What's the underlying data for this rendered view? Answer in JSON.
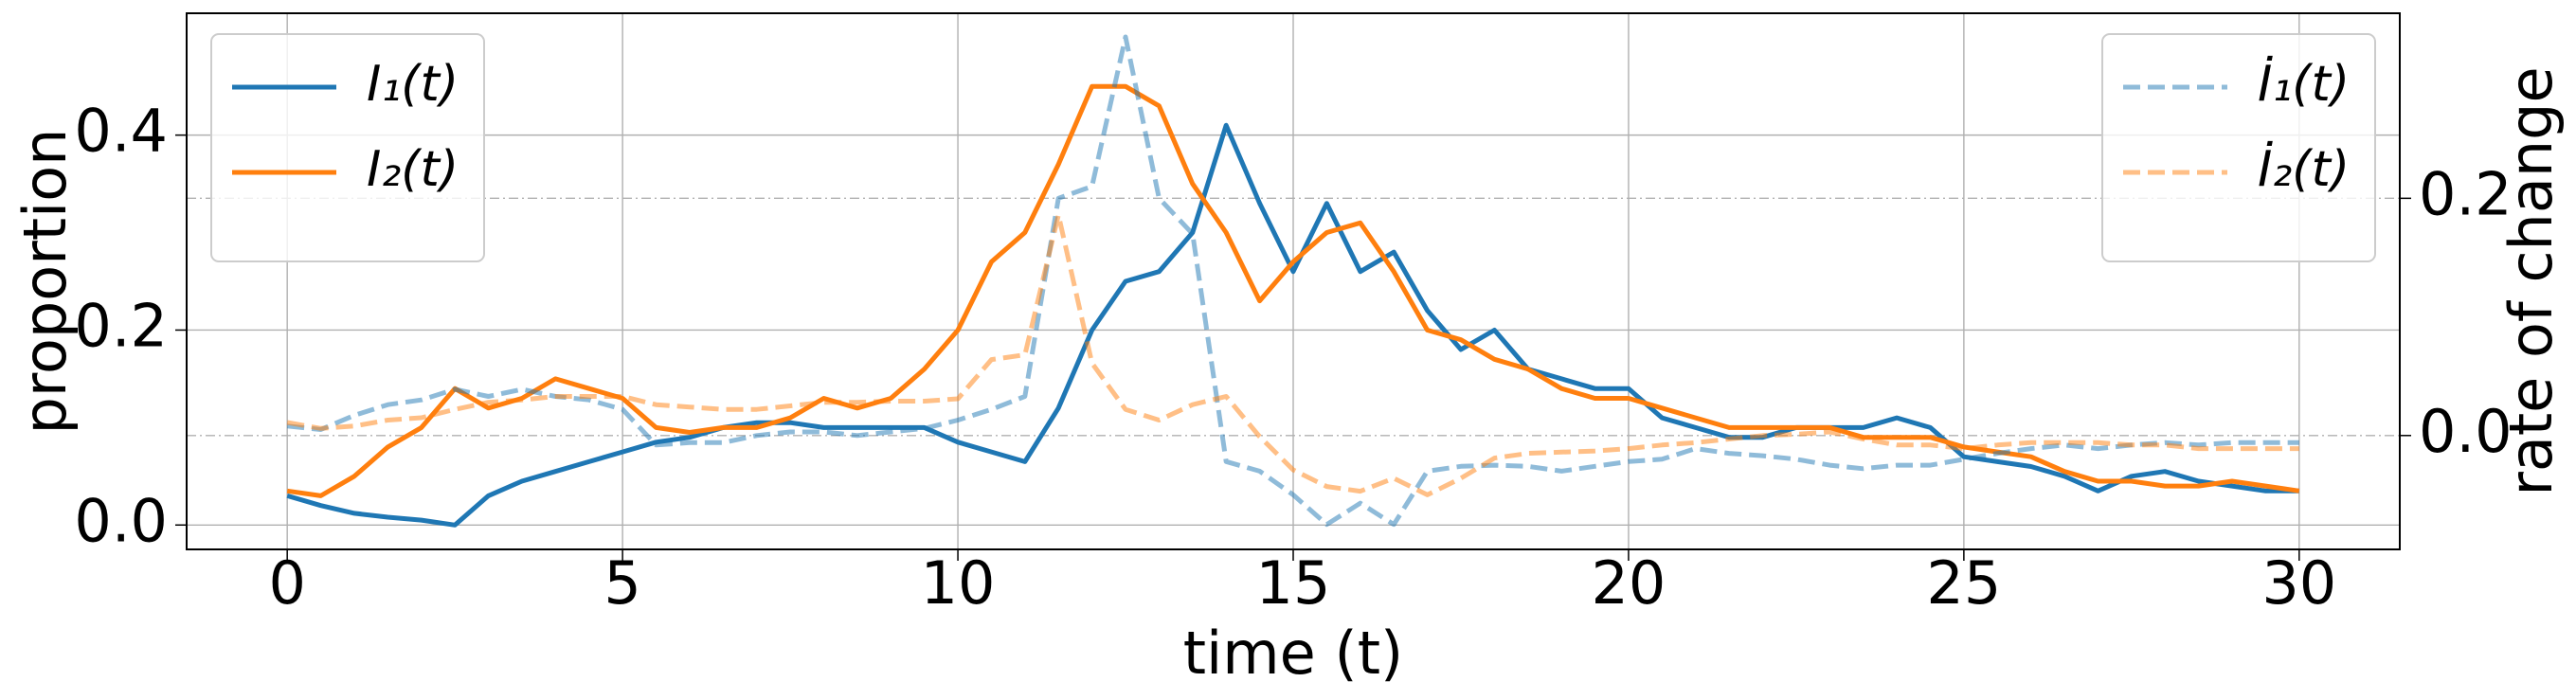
{
  "chart_data": {
    "type": "line",
    "xlabel": "time (t)",
    "ylabel": "proportion",
    "y2label": "rate of change",
    "x": [
      0,
      0.5,
      1,
      1.5,
      2,
      2.5,
      3,
      3.5,
      4,
      4.5,
      5,
      5.5,
      6,
      6.5,
      7,
      7.5,
      8,
      8.5,
      9,
      9.5,
      10,
      10.5,
      11,
      11.5,
      12,
      12.5,
      13,
      13.5,
      14,
      14.5,
      15,
      15.5,
      16,
      16.5,
      17,
      17.5,
      18,
      18.5,
      19,
      19.5,
      20,
      20.5,
      21,
      21.5,
      22,
      22.5,
      23,
      23.5,
      24,
      24.5,
      25,
      25.5,
      26,
      26.5,
      27,
      27.5,
      28,
      28.5,
      29,
      29.5,
      30
    ],
    "series": [
      {
        "name": "I₁(t)",
        "color": "#1f77b4",
        "linestyle": "solid",
        "alpha": 1,
        "values": [
          0.03,
          0.02,
          0.012,
          0.008,
          0.005,
          0.0,
          0.03,
          0.045,
          0.055,
          0.065,
          0.075,
          0.085,
          0.09,
          0.1,
          0.105,
          0.105,
          0.1,
          0.1,
          0.1,
          0.1,
          0.085,
          0.075,
          0.065,
          0.12,
          0.2,
          0.25,
          0.26,
          0.3,
          0.41,
          0.33,
          0.26,
          0.33,
          0.26,
          0.28,
          0.22,
          0.18,
          0.2,
          0.16,
          0.15,
          0.14,
          0.14,
          0.11,
          0.1,
          0.09,
          0.09,
          0.1,
          0.1,
          0.1,
          0.11,
          0.1,
          0.07,
          0.065,
          0.06,
          0.05,
          0.035,
          0.05,
          0.055,
          0.045,
          0.04,
          0.035,
          0.035
        ]
      },
      {
        "name": "I₂(t)",
        "color": "#ff7f0e",
        "linestyle": "solid",
        "alpha": 1,
        "values": [
          0.035,
          0.03,
          0.05,
          0.08,
          0.1,
          0.14,
          0.12,
          0.13,
          0.15,
          0.14,
          0.13,
          0.1,
          0.095,
          0.1,
          0.1,
          0.11,
          0.13,
          0.12,
          0.13,
          0.16,
          0.2,
          0.27,
          0.3,
          0.37,
          0.45,
          0.45,
          0.43,
          0.35,
          0.3,
          0.23,
          0.27,
          0.3,
          0.31,
          0.26,
          0.2,
          0.19,
          0.17,
          0.16,
          0.14,
          0.13,
          0.13,
          0.12,
          0.11,
          0.1,
          0.1,
          0.1,
          0.1,
          0.09,
          0.09,
          0.09,
          0.08,
          0.075,
          0.07,
          0.055,
          0.045,
          0.045,
          0.04,
          0.04,
          0.045,
          0.04,
          0.035
        ]
      },
      {
        "name": "İ₁(t)",
        "color": "#1f77b4",
        "linestyle": "dashed",
        "alpha": 0.5,
        "axis": "y2",
        "values": [
          0.008,
          0.005,
          0.017,
          0.026,
          0.03,
          0.039,
          0.033,
          0.039,
          0.033,
          0.03,
          0.022,
          -0.008,
          -0.006,
          -0.006,
          0,
          0.003,
          0.003,
          0,
          0.003,
          0.006,
          0.013,
          0.022,
          0.033,
          0.2,
          0.21,
          0.336,
          0.2,
          0.17,
          -0.022,
          -0.03,
          -0.05,
          -0.075,
          -0.057,
          -0.075,
          -0.03,
          -0.026,
          -0.025,
          -0.026,
          -0.03,
          -0.026,
          -0.022,
          -0.02,
          -0.011,
          -0.015,
          -0.017,
          -0.02,
          -0.025,
          -0.028,
          -0.025,
          -0.025,
          -0.02,
          -0.015,
          -0.011,
          -0.008,
          -0.011,
          -0.008,
          -0.006,
          -0.008,
          -0.006,
          -0.006,
          -0.006
        ]
      },
      {
        "name": "İ₂(t)",
        "color": "#ff7f0e",
        "linestyle": "dashed",
        "alpha": 0.5,
        "axis": "y2",
        "values": [
          0.011,
          0.006,
          0.008,
          0.013,
          0.015,
          0.022,
          0.028,
          0.03,
          0.033,
          0.033,
          0.033,
          0.026,
          0.024,
          0.022,
          0.022,
          0.025,
          0.028,
          0.028,
          0.029,
          0.029,
          0.031,
          0.064,
          0.068,
          0.186,
          0.061,
          0.022,
          0.013,
          0.026,
          0.033,
          -0.001,
          -0.029,
          -0.043,
          -0.047,
          -0.036,
          -0.05,
          -0.036,
          -0.019,
          -0.015,
          -0.014,
          -0.013,
          -0.011,
          -0.008,
          -0.006,
          -0.003,
          0,
          0.001,
          0.003,
          -0.003,
          -0.008,
          -0.008,
          -0.011,
          -0.008,
          -0.006,
          -0.006,
          -0.006,
          -0.008,
          -0.008,
          -0.011,
          -0.011,
          -0.011,
          -0.011
        ]
      }
    ],
    "xlim": [
      -1.5,
      31.5
    ],
    "xticks": [
      0,
      5,
      10,
      15,
      20,
      25,
      30
    ],
    "ylim": [
      -0.025,
      0.525
    ],
    "yticks": [
      {
        "value": 0,
        "label": "0.0"
      },
      {
        "value": 0.2,
        "label": "0.2"
      },
      {
        "value": 0.4,
        "label": "0.4"
      }
    ],
    "y2lim": [
      -0.096,
      0.356
    ],
    "y2ticks": [
      {
        "value": 0,
        "label": "0.0"
      },
      {
        "value": 0.2,
        "label": "0.2"
      }
    ],
    "grid": true,
    "legend_loc": "upper left",
    "legend2_loc": "upper right"
  }
}
